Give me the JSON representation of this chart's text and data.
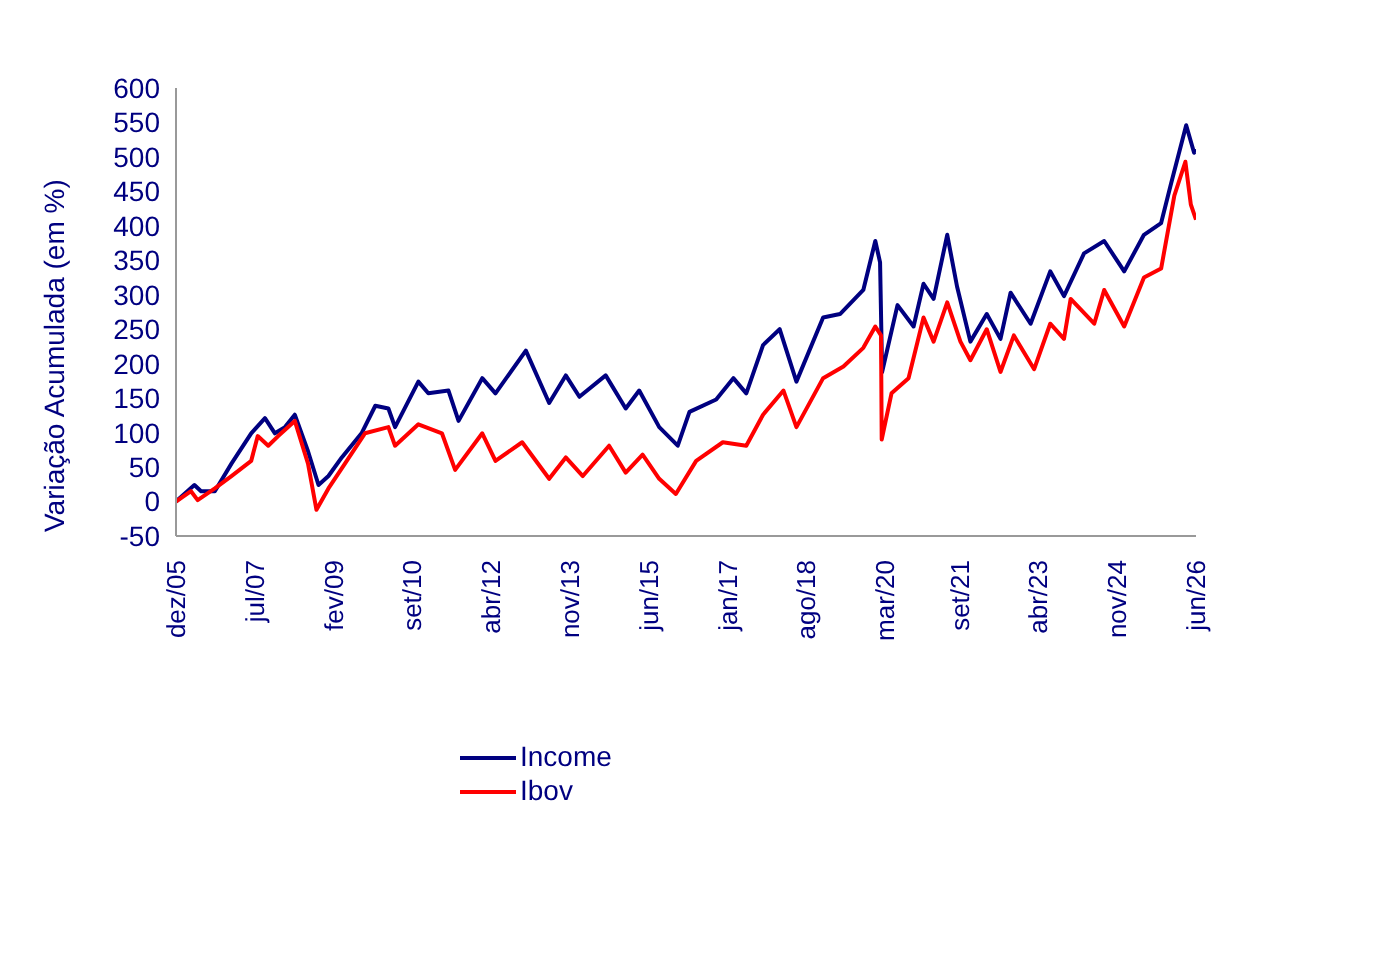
{
  "chart_data": {
    "type": "line",
    "ylabel": "Variação Acumulada (em %)",
    "xlim": [
      "2005-12",
      "2026-06"
    ],
    "xticks": [
      {
        "value": "2005-12",
        "label": "dez/05"
      },
      {
        "value": "2007-07",
        "label": "jul/07"
      },
      {
        "value": "2009-02",
        "label": "fev/09"
      },
      {
        "value": "2010-09",
        "label": "set/10"
      },
      {
        "value": "2012-04",
        "label": "abr/12"
      },
      {
        "value": "2013-11",
        "label": "nov/13"
      },
      {
        "value": "2015-06",
        "label": "jun/15"
      },
      {
        "value": "2017-01",
        "label": "jan/17"
      },
      {
        "value": "2018-08",
        "label": "ago/18"
      },
      {
        "value": "2020-03",
        "label": "mar/20"
      },
      {
        "value": "2021-09",
        "label": "set/21"
      },
      {
        "value": "2023-04",
        "label": "abr/23"
      },
      {
        "value": "2024-11",
        "label": "nov/24"
      },
      {
        "value": "2026-06",
        "label": "jun/26"
      }
    ],
    "ylim": [
      -50,
      600
    ],
    "yticks": [
      -50,
      0,
      50,
      100,
      150,
      200,
      250,
      300,
      350,
      400,
      450,
      500,
      550,
      600
    ],
    "grid": false,
    "legend": "bottom",
    "marker": "none",
    "line_style": "solid",
    "series": [
      {
        "name": "Income",
        "color": "#000080",
        "x": [
          "2005-12-01",
          "2006-04-15",
          "2006-06-03",
          "2006-09-12",
          "2007-01-12",
          "2007-06-06",
          "2007-09-15",
          "2007-11-27",
          "2008-02-09",
          "2008-04-21",
          "2008-07-27",
          "2008-10-12",
          "2008-12-24",
          "2009-04-01",
          "2009-08-24",
          "2009-12-03",
          "2010-03-09",
          "2010-04-27",
          "2010-10-15",
          "2010-12-27",
          "2011-05-24",
          "2011-08-06",
          "2012-01-27",
          "2012-05-03",
          "2012-12-12",
          "2013-06-01",
          "2013-10-01",
          "2014-01-09",
          "2014-07-21",
          "2014-12-15",
          "2015-03-24",
          "2015-08-18",
          "2016-01-01",
          "2016-03-27",
          "2016-10-09",
          "2017-02-12",
          "2017-05-18",
          "2017-09-18",
          "2018-01-18",
          "2018-05-21",
          "2018-12-03",
          "2019-04-06",
          "2019-09-24",
          "2019-12-21",
          "2020-01-25",
          "2020-02-09",
          "2020-06-01",
          "2020-09-27",
          "2020-12-09",
          "2021-02-21",
          "2021-06-01",
          "2021-08-12",
          "2021-11-18",
          "2022-03-18",
          "2022-06-27",
          "2022-09-09",
          "2023-02-03",
          "2023-06-27",
          "2023-10-06",
          "2024-03-01",
          "2024-07-27",
          "2024-12-21",
          "2025-05-15",
          "2025-09-18",
          "2025-12-01",
          "2026-03-21",
          "2026-05-18",
          "2026-06-01"
        ],
        "values": [
          0,
          24,
          15,
          15,
          55,
          99,
          121,
          99,
          108,
          126,
          73,
          24,
          37,
          64,
          99,
          139,
          135,
          108,
          174,
          157,
          161,
          117,
          179,
          157,
          219,
          143,
          183,
          152,
          183,
          135,
          161,
          108,
          81,
          130,
          148,
          179,
          157,
          227,
          250,
          174,
          267,
          272,
          307,
          378,
          347,
          188,
          285,
          254,
          316,
          294,
          387,
          312,
          232,
          272,
          236,
          303,
          258,
          334,
          298,
          360,
          378,
          334,
          387,
          404,
          462,
          546,
          506,
          511
        ]
      },
      {
        "name": "Ibov",
        "color": "#ff0000",
        "x": [
          "2005-12-01",
          "2006-03-21",
          "2006-05-09",
          "2006-09-12",
          "2007-01-12",
          "2007-06-06",
          "2007-07-24",
          "2007-10-09",
          "2007-12-21",
          "2008-04-21",
          "2008-07-27",
          "2008-09-27",
          "2008-12-24",
          "2009-04-24",
          "2009-09-18",
          "2010-03-09",
          "2010-04-27",
          "2010-10-15",
          "2011-04-06",
          "2011-07-12",
          "2012-01-27",
          "2012-05-03",
          "2012-11-15",
          "2013-06-01",
          "2013-10-01",
          "2014-02-03",
          "2014-08-15",
          "2014-12-15",
          "2015-04-18",
          "2015-08-18",
          "2015-12-18",
          "2016-05-15",
          "2016-11-27",
          "2017-05-18",
          "2017-09-18",
          "2018-02-15",
          "2018-05-21",
          "2018-12-03",
          "2019-05-01",
          "2019-09-24",
          "2019-12-21",
          "2020-02-01",
          "2020-02-06",
          "2020-04-18",
          "2020-08-21",
          "2020-12-09",
          "2021-02-21",
          "2021-06-01",
          "2021-09-06",
          "2021-11-18",
          "2022-03-18",
          "2022-06-27",
          "2022-10-03",
          "2023-03-01",
          "2023-06-27",
          "2023-10-06",
          "2023-11-24",
          "2024-05-15",
          "2024-07-27",
          "2024-12-21",
          "2025-05-15",
          "2025-09-18",
          "2025-12-24",
          "2026-03-15",
          "2026-04-24",
          "2026-06-01"
        ],
        "values": [
          0,
          15,
          2,
          19,
          37,
          59,
          95,
          81,
          95,
          117,
          55,
          -12,
          19,
          55,
          99,
          108,
          81,
          112,
          99,
          46,
          99,
          59,
          86,
          33,
          64,
          37,
          81,
          42,
          68,
          33,
          11,
          59,
          86,
          81,
          126,
          161,
          108,
          179,
          196,
          223,
          254,
          241,
          90,
          157,
          179,
          267,
          232,
          289,
          232,
          205,
          250,
          188,
          241,
          192,
          258,
          236,
          294,
          258,
          307,
          254,
          325,
          338,
          444,
          493,
          431,
          409
        ]
      }
    ]
  }
}
